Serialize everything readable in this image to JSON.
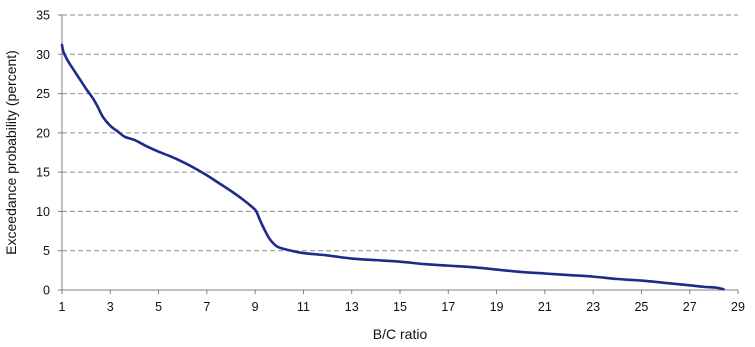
{
  "chart_data": {
    "type": "line",
    "title": "",
    "xlabel": "B/C ratio",
    "ylabel": "Exceedance probability (percent)",
    "xlim": [
      1,
      29
    ],
    "ylim": [
      0,
      35
    ],
    "x_ticks": [
      1,
      3,
      5,
      7,
      9,
      11,
      13,
      15,
      17,
      19,
      21,
      23,
      25,
      27,
      29
    ],
    "y_ticks": [
      0,
      5,
      10,
      15,
      20,
      25,
      30,
      35
    ],
    "grid": "dashed horizontal",
    "legend": "none",
    "series": [
      {
        "color": "#1f2a8a",
        "x": [
          1.0,
          1.05,
          1.2,
          1.4,
          1.7,
          2.0,
          2.3,
          2.5,
          2.7,
          3.0,
          3.3,
          3.6,
          4.0,
          4.5,
          5.0,
          5.5,
          6.0,
          6.5,
          7.0,
          7.5,
          8.0,
          8.5,
          8.9,
          9.05,
          9.2,
          9.4,
          9.6,
          9.8,
          10.0,
          10.5,
          11.0,
          12.0,
          13.0,
          14.0,
          15.0,
          16.0,
          17.0,
          18.0,
          19.0,
          20.0,
          21.0,
          22.0,
          23.0,
          24.0,
          25.0,
          26.0,
          27.0,
          27.6,
          28.1,
          28.4
        ],
        "y": [
          31.2,
          30.4,
          29.4,
          28.4,
          27.0,
          25.6,
          24.3,
          23.2,
          22.0,
          20.9,
          20.2,
          19.5,
          19.1,
          18.3,
          17.6,
          17.0,
          16.3,
          15.5,
          14.6,
          13.6,
          12.6,
          11.5,
          10.5,
          10.0,
          8.9,
          7.6,
          6.5,
          5.8,
          5.4,
          5.0,
          4.7,
          4.4,
          4.0,
          3.8,
          3.6,
          3.3,
          3.1,
          2.9,
          2.6,
          2.3,
          2.1,
          1.9,
          1.7,
          1.4,
          1.2,
          0.9,
          0.6,
          0.4,
          0.3,
          0.1
        ]
      }
    ]
  }
}
